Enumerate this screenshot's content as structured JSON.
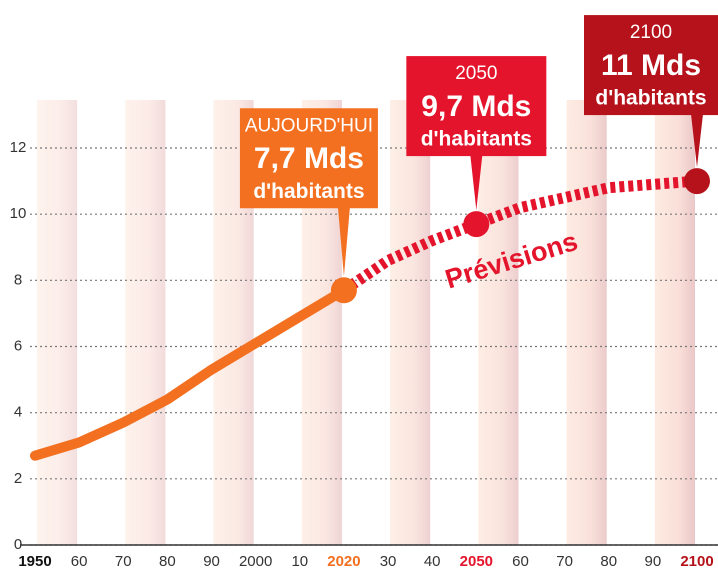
{
  "chart_data": {
    "type": "line",
    "xlim": [
      1950,
      2100
    ],
    "xticks": [
      1950,
      {
        "value": 1960,
        "label": "60"
      },
      {
        "value": 1970,
        "label": "70"
      },
      {
        "value": 1980,
        "label": "80"
      },
      {
        "value": 1990,
        "label": "90"
      },
      2000,
      {
        "value": 2010,
        "label": "10"
      },
      2020,
      {
        "value": 2030,
        "label": "30"
      },
      {
        "value": 2040,
        "label": "40"
      },
      2050,
      {
        "value": 2060,
        "label": "60"
      },
      {
        "value": 2070,
        "label": "70"
      },
      {
        "value": 2080,
        "label": "80"
      },
      {
        "value": 2090,
        "label": "90"
      },
      2100
    ],
    "ylim": [
      0,
      12
    ],
    "yticks": [
      0,
      2,
      4,
      6,
      8,
      10,
      12
    ],
    "grid": true,
    "series": [
      {
        "color": "#f37021",
        "x": [
          1950,
          1960,
          1970,
          1980,
          1990,
          2000,
          2010,
          2020
        ],
        "values": [
          2.7,
          3.1,
          3.7,
          4.4,
          5.3,
          6.1,
          6.9,
          7.7
        ]
      },
      {
        "color": "#e3142b",
        "dashed": true,
        "x": [
          2020,
          2030,
          2040,
          2050,
          2060,
          2070,
          2080,
          2090,
          2100
        ],
        "values": [
          7.7,
          8.6,
          9.2,
          9.7,
          10.2,
          10.5,
          10.8,
          10.9,
          11
        ]
      }
    ],
    "forecast_label": "Prévisions",
    "annotations": [
      {
        "x": 2020,
        "color": "#f37021",
        "lines": [
          "AUJOURD'HUI",
          "7,7 Mds",
          "d'habitants"
        ]
      },
      {
        "x": 2050,
        "color": "#e3142b",
        "lines": [
          "2050",
          "9,7 Mds",
          "d'habitants"
        ]
      },
      {
        "x": 2100,
        "color": "#b5121b",
        "lines": [
          "2100",
          "11 Mds",
          "d'habitants"
        ]
      }
    ]
  }
}
